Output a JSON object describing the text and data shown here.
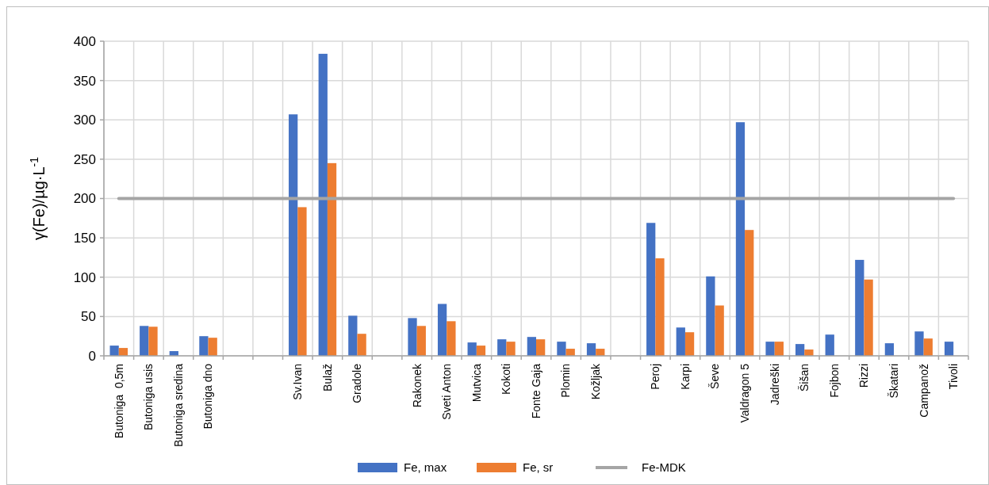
{
  "chart_data": {
    "type": "bar",
    "ylabel": "γ(Fe)/µg·L$^{-1}$",
    "categories": [
      "Butoniga  0,5m",
      "Butoniga usis",
      "Butoniga sredina",
      "Butoniga dno",
      null,
      null,
      "Sv.Ivan",
      "Bulaž",
      "Gradole",
      null,
      "Rakonek",
      "Sveti Anton",
      "Mutvica",
      "Kokoti",
      "Fonte Gaja",
      "Plomin",
      "Kožljak",
      null,
      "Peroj",
      "Karpi",
      "Ševe",
      "Valdragon 5",
      "Jadreški",
      "Šišan",
      "Fojbon",
      "Rizzi",
      "Škatari",
      "Campanož",
      "Tivoli"
    ],
    "series": [
      {
        "name": "Fe, max",
        "color": "#4472c4",
        "values": [
          13,
          38,
          6,
          25,
          null,
          null,
          307,
          384,
          51,
          null,
          48,
          66,
          17,
          21,
          24,
          18,
          16,
          null,
          169,
          36,
          101,
          297,
          18,
          15,
          27,
          122,
          16,
          31,
          18
        ]
      },
      {
        "name": "Fe, sr",
        "color": "#ed7d31",
        "values": [
          10,
          37,
          null,
          23,
          null,
          null,
          189,
          245,
          28,
          null,
          38,
          44,
          13,
          18,
          21,
          9,
          9,
          null,
          124,
          30,
          64,
          160,
          18,
          8,
          null,
          97,
          null,
          22,
          null
        ]
      },
      {
        "name": "Fe-MDK",
        "type": "line",
        "color": "#a5a5a5",
        "values": [
          200,
          200,
          200,
          200,
          200,
          200,
          200,
          200,
          200,
          200,
          200,
          200,
          200,
          200,
          200,
          200,
          200,
          200,
          200,
          200,
          200,
          200,
          200,
          200,
          200,
          200,
          200,
          200,
          200
        ]
      }
    ],
    "ylim": [
      0,
      400
    ],
    "yticks": [
      0,
      50,
      100,
      150,
      200,
      250,
      300,
      350,
      400
    ],
    "grid": true,
    "legend": "bottom"
  }
}
